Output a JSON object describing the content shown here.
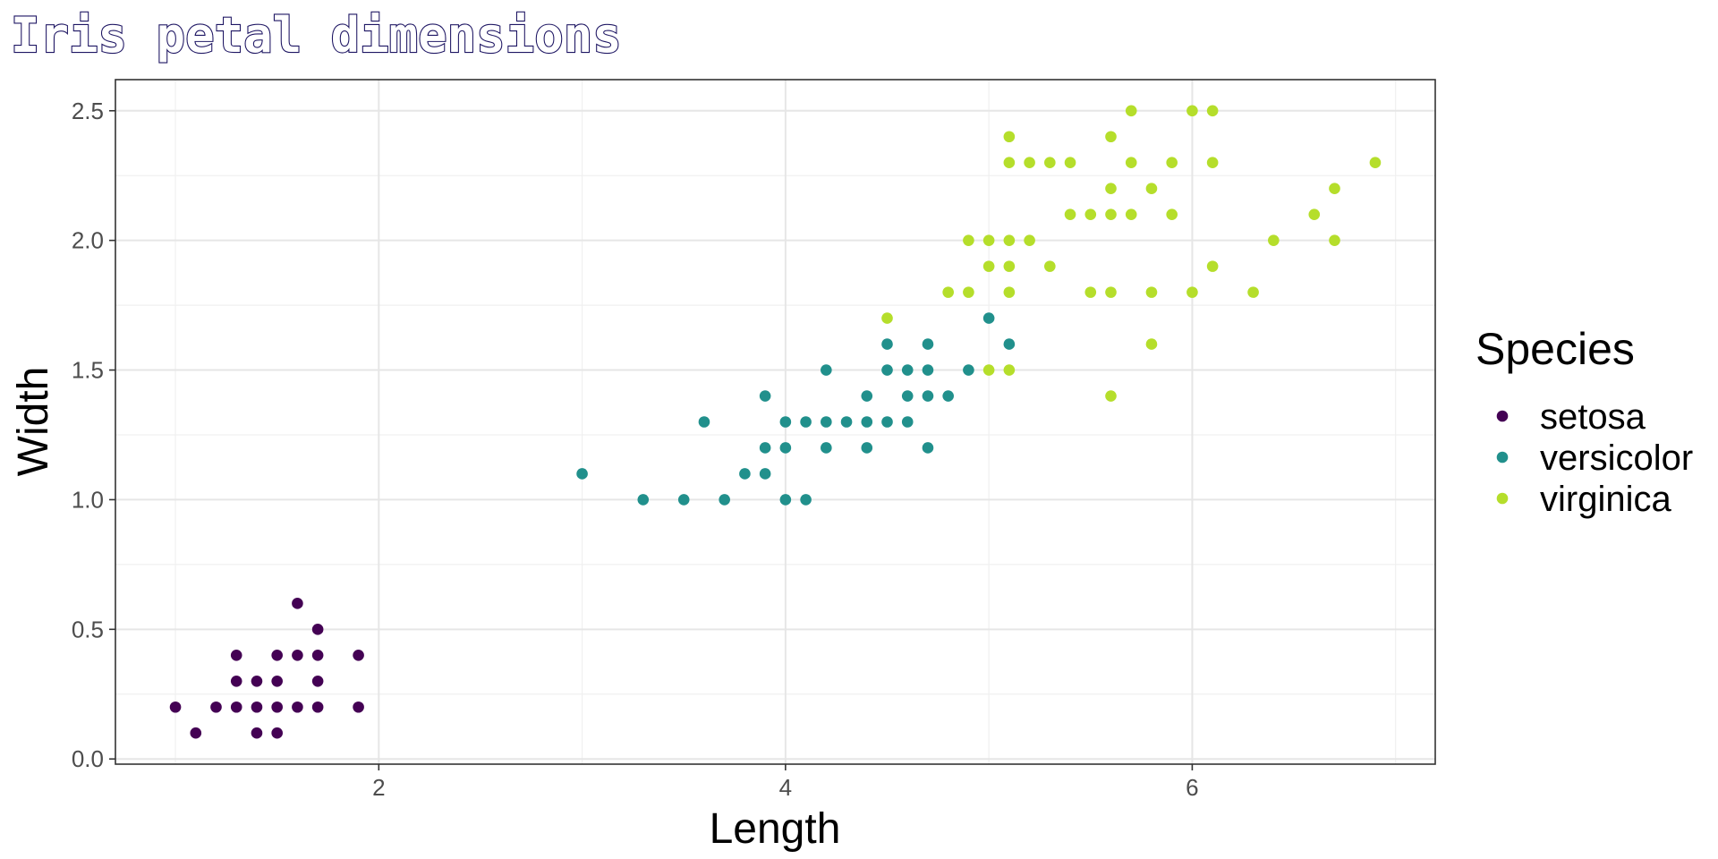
{
  "chart_data": {
    "type": "scatter",
    "title": "Iris petal dimensions",
    "xlabel": "Length",
    "ylabel": "Width",
    "xlim": [
      0.705,
      7.195
    ],
    "ylim": [
      -0.02,
      2.62
    ],
    "x_ticks": [
      2,
      4,
      6
    ],
    "x_tick_labels": [
      "2",
      "4",
      "6"
    ],
    "y_ticks": [
      0.0,
      0.5,
      1.0,
      1.5,
      2.0,
      2.5
    ],
    "y_tick_labels": [
      "0.0",
      "0.5",
      "1.0",
      "1.5",
      "2.0",
      "2.5"
    ],
    "grid": true,
    "legend": {
      "title": "Species",
      "position": "right"
    },
    "series": [
      {
        "name": "setosa",
        "color": "#440154",
        "points": [
          [
            1.0,
            0.2
          ],
          [
            1.1,
            0.1
          ],
          [
            1.2,
            0.2
          ],
          [
            1.3,
            0.2
          ],
          [
            1.3,
            0.3
          ],
          [
            1.3,
            0.4
          ],
          [
            1.4,
            0.1
          ],
          [
            1.4,
            0.2
          ],
          [
            1.4,
            0.3
          ],
          [
            1.5,
            0.1
          ],
          [
            1.5,
            0.2
          ],
          [
            1.5,
            0.3
          ],
          [
            1.5,
            0.4
          ],
          [
            1.6,
            0.2
          ],
          [
            1.6,
            0.4
          ],
          [
            1.6,
            0.6
          ],
          [
            1.7,
            0.2
          ],
          [
            1.7,
            0.3
          ],
          [
            1.7,
            0.4
          ],
          [
            1.7,
            0.5
          ],
          [
            1.9,
            0.2
          ],
          [
            1.9,
            0.4
          ]
        ]
      },
      {
        "name": "versicolor",
        "color": "#21908C",
        "points": [
          [
            3.0,
            1.1
          ],
          [
            3.3,
            1.0
          ],
          [
            3.5,
            1.0
          ],
          [
            3.6,
            1.3
          ],
          [
            3.7,
            1.0
          ],
          [
            3.8,
            1.1
          ],
          [
            3.9,
            1.1
          ],
          [
            3.9,
            1.2
          ],
          [
            3.9,
            1.4
          ],
          [
            4.0,
            1.0
          ],
          [
            4.0,
            1.2
          ],
          [
            4.0,
            1.3
          ],
          [
            4.1,
            1.0
          ],
          [
            4.1,
            1.3
          ],
          [
            4.2,
            1.2
          ],
          [
            4.2,
            1.3
          ],
          [
            4.2,
            1.5
          ],
          [
            4.3,
            1.3
          ],
          [
            4.4,
            1.2
          ],
          [
            4.4,
            1.3
          ],
          [
            4.4,
            1.4
          ],
          [
            4.5,
            1.3
          ],
          [
            4.5,
            1.5
          ],
          [
            4.5,
            1.6
          ],
          [
            4.6,
            1.3
          ],
          [
            4.6,
            1.4
          ],
          [
            4.6,
            1.5
          ],
          [
            4.7,
            1.2
          ],
          [
            4.7,
            1.4
          ],
          [
            4.7,
            1.5
          ],
          [
            4.7,
            1.6
          ],
          [
            4.8,
            1.4
          ],
          [
            4.9,
            1.5
          ],
          [
            5.0,
            1.7
          ],
          [
            5.1,
            1.6
          ]
        ]
      },
      {
        "name": "virginica",
        "color": "#B5DE2B",
        "points": [
          [
            4.5,
            1.7
          ],
          [
            4.8,
            1.8
          ],
          [
            4.9,
            1.8
          ],
          [
            4.9,
            2.0
          ],
          [
            5.0,
            1.5
          ],
          [
            5.0,
            1.9
          ],
          [
            5.0,
            2.0
          ],
          [
            5.1,
            1.5
          ],
          [
            5.1,
            1.8
          ],
          [
            5.1,
            1.9
          ],
          [
            5.1,
            2.0
          ],
          [
            5.1,
            2.3
          ],
          [
            5.1,
            2.4
          ],
          [
            5.2,
            2.0
          ],
          [
            5.2,
            2.3
          ],
          [
            5.3,
            1.9
          ],
          [
            5.3,
            2.3
          ],
          [
            5.4,
            2.1
          ],
          [
            5.4,
            2.3
          ],
          [
            5.5,
            1.8
          ],
          [
            5.5,
            2.1
          ],
          [
            5.6,
            1.4
          ],
          [
            5.6,
            1.8
          ],
          [
            5.6,
            2.1
          ],
          [
            5.6,
            2.2
          ],
          [
            5.6,
            2.4
          ],
          [
            5.7,
            2.1
          ],
          [
            5.7,
            2.3
          ],
          [
            5.7,
            2.5
          ],
          [
            5.8,
            1.6
          ],
          [
            5.8,
            1.8
          ],
          [
            5.8,
            2.2
          ],
          [
            5.9,
            2.1
          ],
          [
            5.9,
            2.3
          ],
          [
            6.0,
            1.8
          ],
          [
            6.0,
            2.5
          ],
          [
            6.1,
            1.9
          ],
          [
            6.1,
            2.3
          ],
          [
            6.1,
            2.5
          ],
          [
            6.3,
            1.8
          ],
          [
            6.4,
            2.0
          ],
          [
            6.6,
            2.1
          ],
          [
            6.7,
            2.0
          ],
          [
            6.7,
            2.2
          ],
          [
            6.9,
            2.3
          ]
        ]
      }
    ]
  }
}
